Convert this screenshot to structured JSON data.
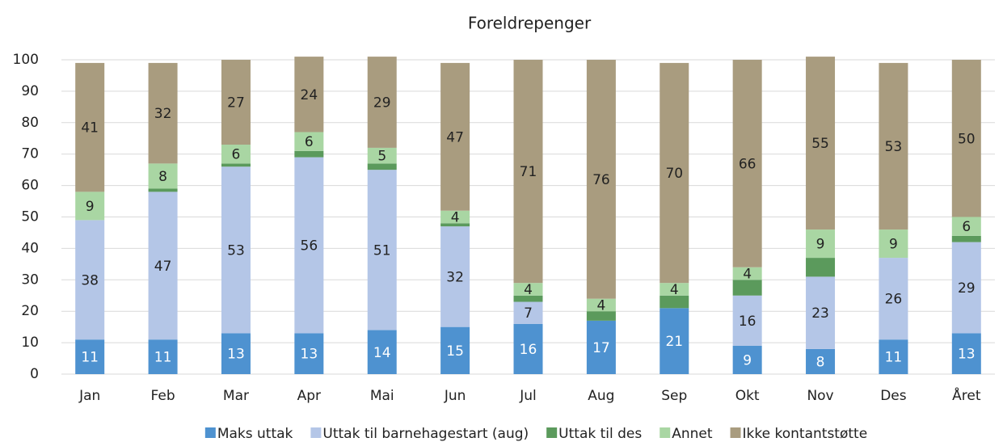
{
  "chart_data": {
    "type": "stacked_bar",
    "title": "Foreldrepenger",
    "categories": [
      "Jan",
      "Feb",
      "Mar",
      "Apr",
      "Mai",
      "Jun",
      "Jul",
      "Aug",
      "Sep",
      "Okt",
      "Nov",
      "Des",
      "Året"
    ],
    "series": [
      {
        "name": "Maks uttak",
        "color": "#4e92d0",
        "label_color": "#ffffff",
        "data_labels": true,
        "values": [
          11,
          11,
          13,
          13,
          14,
          15,
          16,
          17,
          21,
          9,
          8,
          11,
          13
        ]
      },
      {
        "name": "Uttak til barnehagestart (aug)",
        "color": "#b4c6e7",
        "label_color": "#222222",
        "data_labels": true,
        "values": [
          38,
          47,
          53,
          56,
          51,
          32,
          7,
          0,
          0,
          16,
          23,
          26,
          29
        ]
      },
      {
        "name": "Uttak til des",
        "color": "#5b9a5c",
        "label_color": "#222222",
        "data_labels": false,
        "values": [
          0,
          1,
          1,
          2,
          2,
          1,
          2,
          3,
          4,
          5,
          6,
          0,
          2
        ]
      },
      {
        "name": "Annet",
        "color": "#a9d6a3",
        "label_color": "#222222",
        "data_labels": true,
        "values": [
          9,
          8,
          6,
          6,
          5,
          4,
          4,
          4,
          4,
          4,
          9,
          9,
          6
        ]
      },
      {
        "name": "Ikke kontantstøtte",
        "color": "#a99c7f",
        "label_color": "#222222",
        "data_labels": true,
        "values": [
          41,
          32,
          27,
          24,
          29,
          47,
          71,
          76,
          70,
          66,
          55,
          53,
          50
        ]
      }
    ],
    "ylim": [
      0,
      100
    ],
    "yticks": [
      0,
      10,
      20,
      30,
      40,
      50,
      60,
      70,
      80,
      90,
      100
    ],
    "grid": true,
    "legend": "bottom"
  }
}
